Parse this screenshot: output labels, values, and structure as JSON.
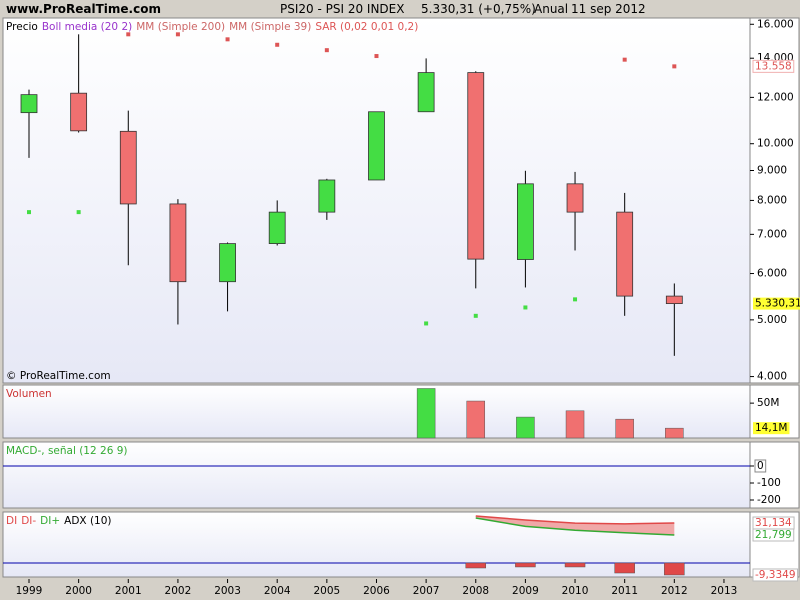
{
  "header": {
    "site": "www.ProRealTime.com",
    "instrument": "PSI20 - PSI 20 INDEX",
    "price": "5.330,31 (+0,75%)",
    "period": "Anual",
    "date": "11 sep 2012"
  },
  "chart_data": [
    {
      "type": "candlestick",
      "categories": [
        "1999",
        "2000",
        "2001",
        "2002",
        "2003",
        "2004",
        "2005",
        "2006",
        "2007",
        "2008",
        "2009",
        "2010",
        "2011",
        "2012",
        "2013"
      ],
      "open": [
        11300,
        12200,
        10500,
        7890,
        5810,
        6750,
        7640,
        8670,
        11340,
        13230,
        6340,
        8540,
        7640,
        5490,
        null
      ],
      "high": [
        12370,
        15380,
        11390,
        8040,
        6780,
        8000,
        8710,
        11340,
        13990,
        13300,
        8990,
        8950,
        8240,
        5770,
        null
      ],
      "low": [
        9460,
        10450,
        6200,
        4910,
        5170,
        6700,
        7410,
        8670,
        11340,
        5660,
        5680,
        6570,
        5080,
        4340,
        null
      ],
      "close": [
        12130,
        10520,
        7890,
        5810,
        6750,
        7640,
        8670,
        11340,
        13230,
        6350,
        8540,
        7640,
        5490,
        5330.31,
        null
      ],
      "close_labels": [
        null,
        null,
        null,
        null,
        null,
        null,
        null,
        null,
        null,
        null,
        null,
        null,
        null,
        "5.330,31",
        null
      ],
      "up_color": "#44dd44",
      "down_color": "#f07070",
      "ylim": [
        3900,
        16400
      ],
      "log_scale": true,
      "yticks": [
        {
          "value": 4000,
          "label": "4.000"
        },
        {
          "value": 5000,
          "label": "5.000"
        },
        {
          "value": 6000,
          "label": "6.000"
        },
        {
          "value": 7000,
          "label": "7.000"
        },
        {
          "value": 8000,
          "label": "8.000"
        },
        {
          "value": 9000,
          "label": "9.000"
        },
        {
          "value": 10000,
          "label": "10.000"
        },
        {
          "value": 12000,
          "label": "12.000"
        },
        {
          "value": 14000,
          "label": "14.000"
        },
        {
          "value": 16000,
          "label": "16.000"
        }
      ],
      "indicators": [
        {
          "name": "Precio",
          "color": "#000000"
        },
        {
          "name": "Boll media (20 2)",
          "color": "#9933cc"
        },
        {
          "name": "MM (Simple 200)",
          "color": "#cc6666"
        },
        {
          "name": "MM (Simple 39)",
          "color": "#cc6666"
        }
      ],
      "series": [
        {
          "name": "SAR (0,02 0,01 0,2)",
          "color": "#dd5555",
          "values": [
            7640,
            7640,
            15380,
            15380,
            15080,
            14760,
            14450,
            14120,
            4930,
            5080,
            5250,
            5420,
            13920,
            13558,
            null
          ],
          "value_labels": [
            null,
            null,
            null,
            null,
            null,
            null,
            null,
            null,
            null,
            null,
            null,
            null,
            null,
            "13.558",
            null
          ]
        }
      ],
      "watermark": "© ProRealTime.com"
    },
    {
      "type": "bar",
      "title": "Volumen",
      "title_color": "#cc3333",
      "values": [
        null,
        null,
        null,
        null,
        null,
        null,
        null,
        null,
        71,
        53,
        30,
        39,
        27,
        14.1,
        null
      ],
      "value_labels": [
        null,
        null,
        null,
        null,
        null,
        null,
        null,
        null,
        null,
        null,
        null,
        null,
        null,
        "14,1M",
        null
      ],
      "colors": [
        null,
        null,
        null,
        null,
        null,
        null,
        null,
        null,
        "#44dd44",
        "#f07070",
        "#44dd44",
        "#f07070",
        "#f07070",
        "#f07070",
        null
      ],
      "ylim": [
        0,
        76
      ],
      "yticks": [
        {
          "value": 50,
          "label": "50M"
        }
      ]
    },
    {
      "type": "line",
      "title": "MACD-, señal (12 26 9)",
      "title_color": "#33aa33",
      "ylim": [
        -247,
        141
      ],
      "yticks": [
        0,
        -100,
        -200
      ],
      "zero_line_color": "#0000aa"
    },
    {
      "type": "line",
      "ylim": [
        -10.9,
        39.7
      ],
      "zero_line_color": "#0000aa",
      "fill_color": "#f0a8a8",
      "series": [
        {
          "name": "DI",
          "color": "#e04848",
          "kind": "bar",
          "values": [
            null,
            null,
            null,
            null,
            null,
            null,
            null,
            null,
            null,
            -3.9,
            -3.1,
            -3.1,
            -7.8,
            -9.3349,
            null
          ],
          "value_labels": [
            null,
            null,
            null,
            null,
            null,
            null,
            null,
            null,
            null,
            null,
            null,
            null,
            null,
            "-9,3349",
            null
          ]
        },
        {
          "name": "DI-",
          "color": "#e04848",
          "values": [
            null,
            null,
            null,
            null,
            null,
            null,
            null,
            null,
            null,
            36.6,
            33.5,
            31.0,
            30.5,
            31.134,
            null
          ],
          "value_labels": [
            null,
            null,
            null,
            null,
            null,
            null,
            null,
            null,
            null,
            null,
            null,
            null,
            null,
            "31,134",
            null
          ]
        },
        {
          "name": "DI+",
          "color": "#33aa33",
          "values": [
            null,
            null,
            null,
            null,
            null,
            null,
            null,
            null,
            null,
            35.0,
            28.5,
            25.5,
            23.5,
            21.799,
            null
          ],
          "value_labels": [
            null,
            null,
            null,
            null,
            null,
            null,
            null,
            null,
            null,
            null,
            null,
            null,
            null,
            "21,799",
            null
          ]
        },
        {
          "name": "ADX (10)",
          "color": "#000000"
        }
      ]
    }
  ]
}
